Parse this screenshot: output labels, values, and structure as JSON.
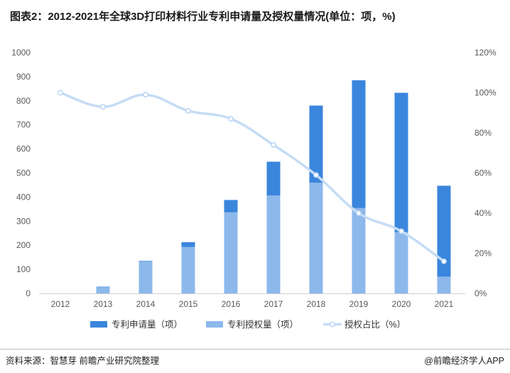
{
  "title": "图表2：2012-2021年全球3D打印材料行业专利申请量及授权量情况(单位：项，%)",
  "source_left": "资料来源：智慧芽 前瞻产业研究院整理",
  "source_right": "@前瞻经济学人APP",
  "chart_data": {
    "type": "bar",
    "stacked": "overlay",
    "categories": [
      "2012",
      "2013",
      "2014",
      "2015",
      "2016",
      "2017",
      "2018",
      "2019",
      "2020",
      "2021"
    ],
    "series": [
      {
        "name": "专利申请量（项）",
        "kind": "bar",
        "axis": "left",
        "color": "#3a86dd",
        "values": [
          0,
          28,
          135,
          213,
          388,
          547,
          780,
          885,
          833,
          447
        ]
      },
      {
        "name": "专利授权量（项）",
        "kind": "bar",
        "axis": "left",
        "color": "#8cb8ec",
        "values": [
          0,
          26,
          133,
          193,
          337,
          407,
          460,
          355,
          255,
          70
        ]
      },
      {
        "name": "授权占比（%）",
        "kind": "line",
        "axis": "right",
        "color": "#c5dcf5",
        "values": [
          100,
          93,
          99,
          91,
          87,
          74,
          59,
          40,
          31,
          16
        ]
      }
    ],
    "y_left": {
      "min": 0,
      "max": 1000,
      "ticks": [
        0,
        100,
        200,
        300,
        400,
        500,
        600,
        700,
        800,
        900,
        1000
      ]
    },
    "y_right": {
      "min": 0,
      "max": 120,
      "ticks": [
        "0%",
        "20%",
        "40%",
        "60%",
        "80%",
        "100%",
        "120%"
      ]
    },
    "legend_position": "bottom",
    "grid": false
  }
}
